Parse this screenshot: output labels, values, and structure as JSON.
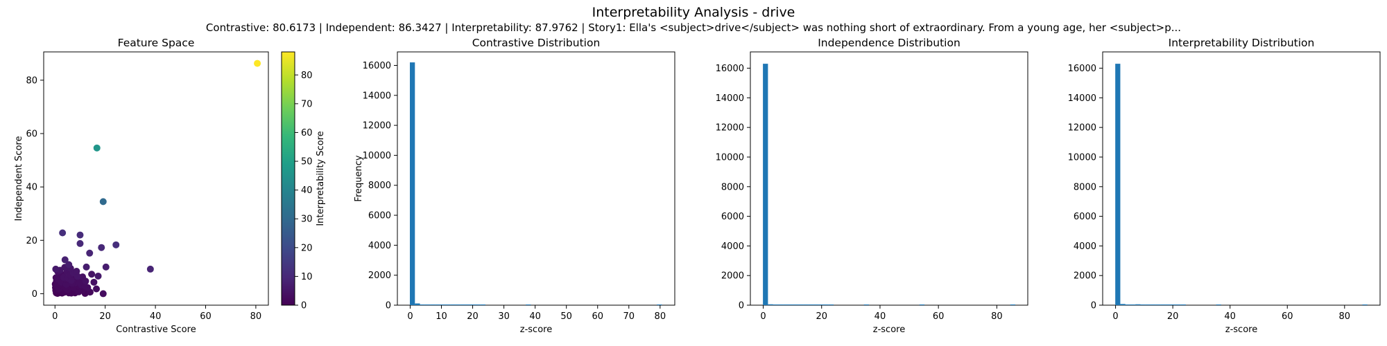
{
  "figure": {
    "title": "Interpretability Analysis - drive",
    "subtitle": "Contrastive: 80.6173 | Independent: 86.3427 | Interpretability: 87.9762 | Story1: Ella's <subject>drive</subject> was nothing short of extraordinary. From a young age, her <subject>p..."
  },
  "colors": {
    "bar": "#1f77b4",
    "colormap": [
      "#440154",
      "#482878",
      "#3e4989",
      "#31688e",
      "#26828e",
      "#1f9e89",
      "#35b779",
      "#6ece58",
      "#b5de2b",
      "#fde725"
    ]
  },
  "chart_data": [
    {
      "type": "scatter",
      "title": "Feature Space",
      "xlabel": "Contrastive Score",
      "ylabel": "Independent Score",
      "xlim": [
        -4.5,
        85
      ],
      "ylim": [
        -4.3,
        90.6
      ],
      "xticks": [
        0,
        20,
        40,
        60,
        80
      ],
      "yticks": [
        0,
        20,
        40,
        60,
        80
      ],
      "colorbar": {
        "label": "Interpretability Score",
        "range": [
          0,
          88
        ],
        "ticks": [
          0,
          10,
          20,
          30,
          40,
          50,
          60,
          70,
          80
        ]
      },
      "points": [
        {
          "x": 80.6,
          "y": 86.3,
          "c": 88
        },
        {
          "x": 16.7,
          "y": 54.6,
          "c": 46
        },
        {
          "x": 19.2,
          "y": 34.5,
          "c": 30
        },
        {
          "x": 3.0,
          "y": 22.8,
          "c": 12
        },
        {
          "x": 10.0,
          "y": 22.0,
          "c": 11
        },
        {
          "x": 10.0,
          "y": 18.8,
          "c": 10
        },
        {
          "x": 24.3,
          "y": 18.3,
          "c": 12
        },
        {
          "x": 18.5,
          "y": 17.3,
          "c": 10
        },
        {
          "x": 13.8,
          "y": 15.2,
          "c": 9
        },
        {
          "x": 4.0,
          "y": 12.7,
          "c": 8
        },
        {
          "x": 5.5,
          "y": 10.9,
          "c": 7
        },
        {
          "x": 12.5,
          "y": 10.0,
          "c": 7
        },
        {
          "x": 20.3,
          "y": 10.0,
          "c": 7
        },
        {
          "x": 38.0,
          "y": 9.2,
          "c": 9
        },
        {
          "x": 0.3,
          "y": 9.2,
          "c": 6
        },
        {
          "x": 2.0,
          "y": 8.8,
          "c": 5
        },
        {
          "x": 7.3,
          "y": 7.8,
          "c": 5
        },
        {
          "x": 14.6,
          "y": 7.3,
          "c": 5
        },
        {
          "x": 17.2,
          "y": 6.6,
          "c": 6
        },
        {
          "x": 11.0,
          "y": 6.3,
          "c": 4
        },
        {
          "x": 9.0,
          "y": 6.5,
          "c": 5
        },
        {
          "x": 3.5,
          "y": 6.1,
          "c": 4
        },
        {
          "x": 5.2,
          "y": 5.8,
          "c": 4
        },
        {
          "x": 1.2,
          "y": 5.5,
          "c": 3
        },
        {
          "x": 6.5,
          "y": 5.0,
          "c": 4
        },
        {
          "x": 12.2,
          "y": 4.7,
          "c": 4
        },
        {
          "x": 15.5,
          "y": 4.3,
          "c": 4
        },
        {
          "x": 8.0,
          "y": 4.0,
          "c": 3
        },
        {
          "x": 2.5,
          "y": 4.3,
          "c": 3
        },
        {
          "x": 4.5,
          "y": 3.5,
          "c": 3
        },
        {
          "x": 10.5,
          "y": 3.3,
          "c": 3
        },
        {
          "x": 0.8,
          "y": 3.0,
          "c": 2
        },
        {
          "x": 6.0,
          "y": 2.8,
          "c": 2
        },
        {
          "x": 3.0,
          "y": 2.5,
          "c": 2
        },
        {
          "x": 13.0,
          "y": 2.3,
          "c": 3
        },
        {
          "x": 8.5,
          "y": 2.0,
          "c": 2
        },
        {
          "x": 1.5,
          "y": 1.8,
          "c": 2
        },
        {
          "x": 5.0,
          "y": 1.5,
          "c": 2
        },
        {
          "x": 16.5,
          "y": 1.8,
          "c": 3
        },
        {
          "x": 11.0,
          "y": 1.3,
          "c": 2
        },
        {
          "x": 0.3,
          "y": 1.2,
          "c": 1
        },
        {
          "x": 2.2,
          "y": 1.0,
          "c": 1
        },
        {
          "x": 4.0,
          "y": 0.8,
          "c": 1
        },
        {
          "x": 7.0,
          "y": 0.9,
          "c": 1
        },
        {
          "x": 9.5,
          "y": 0.7,
          "c": 2
        },
        {
          "x": 14.0,
          "y": 0.6,
          "c": 2
        },
        {
          "x": 19.2,
          "y": 0.0,
          "c": 3
        },
        {
          "x": 0.5,
          "y": 0.3,
          "c": 0
        },
        {
          "x": 1.0,
          "y": 0.1,
          "c": 0
        },
        {
          "x": 1.8,
          "y": 0.4,
          "c": 0
        },
        {
          "x": 2.8,
          "y": 0.2,
          "c": 0
        },
        {
          "x": 3.6,
          "y": 0.5,
          "c": 1
        },
        {
          "x": 5.5,
          "y": 0.3,
          "c": 1
        },
        {
          "x": 6.5,
          "y": 0.2,
          "c": 1
        },
        {
          "x": 8.0,
          "y": 0.3,
          "c": 1
        },
        {
          "x": 12.0,
          "y": 0.1,
          "c": 1
        },
        {
          "x": 0.2,
          "y": 2.3,
          "c": 1
        },
        {
          "x": 0.6,
          "y": 4.8,
          "c": 2
        },
        {
          "x": 1.4,
          "y": 6.7,
          "c": 3
        },
        {
          "x": 2.0,
          "y": 3.4,
          "c": 2
        },
        {
          "x": 3.3,
          "y": 1.5,
          "c": 1
        },
        {
          "x": 4.2,
          "y": 2.2,
          "c": 2
        },
        {
          "x": 4.8,
          "y": 8.2,
          "c": 4
        },
        {
          "x": 6.8,
          "y": 3.9,
          "c": 3
        },
        {
          "x": 7.8,
          "y": 5.6,
          "c": 3
        },
        {
          "x": 9.2,
          "y": 2.9,
          "c": 2
        },
        {
          "x": 10.3,
          "y": 5.1,
          "c": 3
        },
        {
          "x": 11.8,
          "y": 3.0,
          "c": 3
        },
        {
          "x": 1.1,
          "y": 8.3,
          "c": 4
        },
        {
          "x": 0.4,
          "y": 6.0,
          "c": 2
        },
        {
          "x": 2.6,
          "y": 7.4,
          "c": 3
        },
        {
          "x": 3.9,
          "y": 9.9,
          "c": 5
        },
        {
          "x": 5.9,
          "y": 7.0,
          "c": 4
        },
        {
          "x": 8.6,
          "y": 8.4,
          "c": 5
        },
        {
          "x": 6.2,
          "y": 9.5,
          "c": 5
        },
        {
          "x": 0.9,
          "y": 0.6,
          "c": 0
        },
        {
          "x": 1.6,
          "y": 1.3,
          "c": 1
        },
        {
          "x": 2.4,
          "y": 2.0,
          "c": 1
        },
        {
          "x": 0.1,
          "y": 3.6,
          "c": 1
        },
        {
          "x": 3.8,
          "y": 4.6,
          "c": 2
        },
        {
          "x": 4.6,
          "y": 5.3,
          "c": 3
        },
        {
          "x": 7.4,
          "y": 2.4,
          "c": 2
        },
        {
          "x": 9.8,
          "y": 4.2,
          "c": 3
        },
        {
          "x": 1.3,
          "y": 2.7,
          "c": 1
        }
      ]
    },
    {
      "type": "bar",
      "title": "Contrastive Distribution",
      "xlabel": "z-score",
      "ylabel": "Frequency",
      "xlim": [
        -4.1,
        84.7
      ],
      "ylim": [
        0,
        16900
      ],
      "xticks": [
        0,
        10,
        20,
        30,
        40,
        50,
        60,
        70,
        80
      ],
      "yticks": [
        0,
        2000,
        4000,
        6000,
        8000,
        10000,
        12000,
        14000,
        16000
      ],
      "bin_start": -0.1,
      "bin_width": 1.6135,
      "counts": [
        16200,
        115,
        30,
        12,
        6,
        4,
        3,
        2,
        2,
        1,
        1,
        1,
        1,
        1,
        1,
        0,
        0,
        0,
        0,
        0,
        0,
        0,
        0,
        1,
        0,
        0,
        0,
        0,
        0,
        0,
        0,
        0,
        0,
        0,
        0,
        0,
        0,
        0,
        0,
        0,
        0,
        0,
        0,
        0,
        0,
        0,
        0,
        0,
        0,
        1
      ]
    },
    {
      "type": "bar",
      "title": "Independence Distribution",
      "xlabel": "z-score",
      "ylabel": "",
      "xlim": [
        -4.4,
        90.6
      ],
      "ylim": [
        0,
        17100
      ],
      "xticks": [
        0,
        20,
        40,
        60,
        80
      ],
      "yticks": [
        0,
        2000,
        4000,
        6000,
        8000,
        10000,
        12000,
        14000,
        16000
      ],
      "bin_start": -0.1,
      "bin_width": 1.7289,
      "counts": [
        16300,
        60,
        20,
        10,
        6,
        4,
        3,
        2,
        2,
        1,
        1,
        1,
        1,
        1,
        0,
        0,
        0,
        0,
        0,
        0,
        1,
        0,
        0,
        0,
        0,
        0,
        0,
        0,
        0,
        0,
        0,
        1,
        0,
        0,
        0,
        0,
        0,
        0,
        0,
        0,
        0,
        0,
        0,
        0,
        0,
        0,
        0,
        0,
        0,
        1
      ]
    },
    {
      "type": "bar",
      "title": "Interpretability Distribution",
      "xlabel": "z-score",
      "ylabel": "",
      "xlim": [
        -4.5,
        92.4
      ],
      "ylim": [
        0,
        17100
      ],
      "xticks": [
        0,
        20,
        40,
        60,
        80
      ],
      "yticks": [
        0,
        2000,
        4000,
        6000,
        8000,
        10000,
        12000,
        14000,
        16000
      ],
      "bin_start": -0.1,
      "bin_width": 1.7615,
      "counts": [
        16300,
        80,
        25,
        10,
        60,
        4,
        3,
        2,
        1,
        1,
        1,
        1,
        1,
        1,
        0,
        0,
        0,
        0,
        0,
        0,
        1,
        0,
        0,
        0,
        0,
        0,
        0,
        0,
        0,
        0,
        0,
        0,
        0,
        0,
        0,
        0,
        0,
        0,
        0,
        0,
        0,
        0,
        0,
        0,
        0,
        0,
        0,
        0,
        0,
        1
      ]
    }
  ]
}
